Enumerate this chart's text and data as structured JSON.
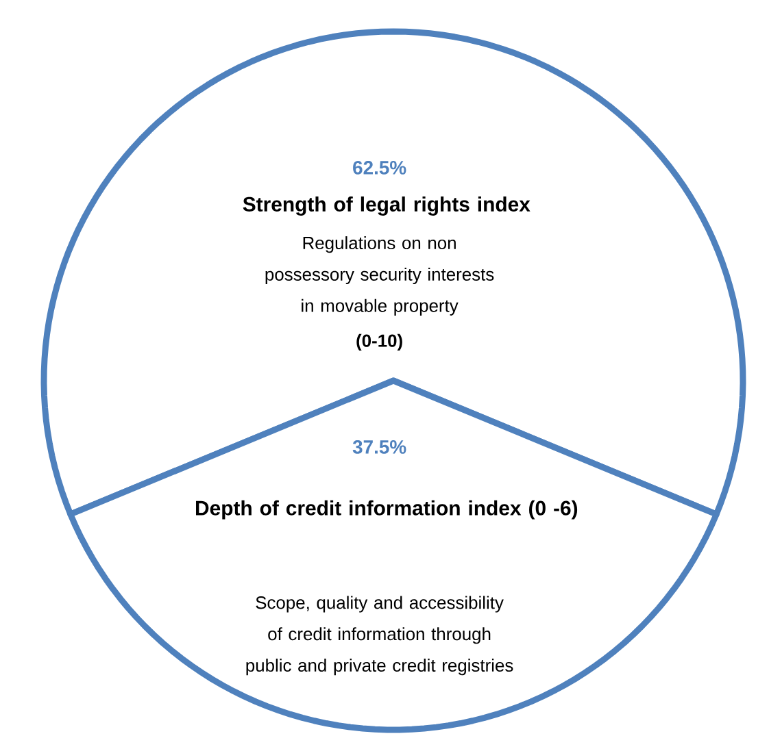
{
  "chart_data": {
    "type": "pie",
    "categories": [
      "Strength of legal rights index",
      "Depth of credit information index (0 -6)"
    ],
    "values": [
      62.5,
      37.5
    ],
    "value_labels": [
      "62.5%",
      "37.5%"
    ],
    "colors": [
      "#ffffff",
      "#ffffff"
    ],
    "annotations": [
      "Regulations on non possessory security interests in movable property",
      "(0-10)",
      "Scope, quality and accessibility of credit information through public and private credit registries"
    ]
  }
}
